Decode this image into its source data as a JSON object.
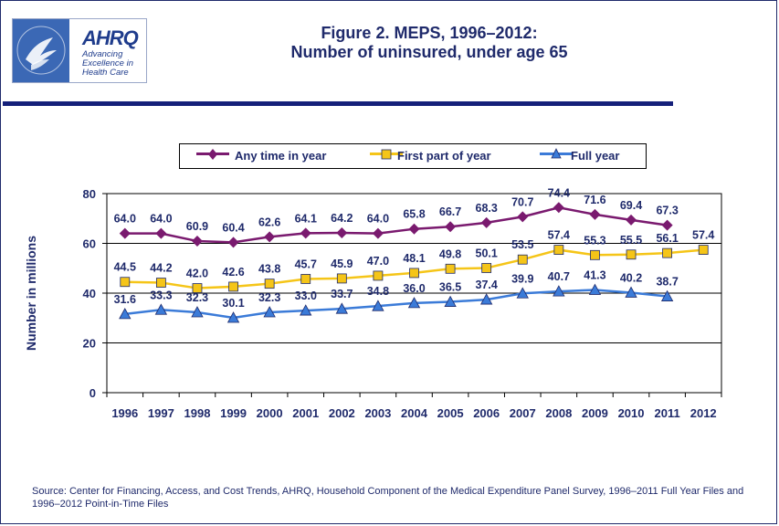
{
  "title_line1": "Figure 2. MEPS, 1996–2012:",
  "title_line2": "Number of uninsured, under age 65",
  "logo": {
    "brand": "AHRQ",
    "tag1": "Advancing",
    "tag2": "Excellence in",
    "tag3": "Health Care",
    "seal_text": "DEPARTMENT OF HEALTH & HUMAN SERVICES USA"
  },
  "source": "Source: Center for Financing, Access, and Cost Trends, AHRQ, Household Component of the Medical Expenditure Panel Survey,  1996–2011 Full Year Files and 1996–2012 Point-in-Time Files",
  "colors": {
    "navy": "#1f2a6b",
    "any_time": "#7a1a6f",
    "first_part": "#f5c518",
    "full_year": "#3b7bd8",
    "rule": "#15207a"
  },
  "chart_data": {
    "type": "line",
    "title": "",
    "xlabel": "",
    "ylabel": "Number in millions",
    "ylim": [
      0,
      80
    ],
    "yticks": [
      "0",
      "20",
      "40",
      "60",
      "80"
    ],
    "grid": "horizontal",
    "legend_position": "top",
    "categories": [
      "1996",
      "1997",
      "1998",
      "1999",
      "2000",
      "2001",
      "2002",
      "2003",
      "2004",
      "2005",
      "2006",
      "2007",
      "2008",
      "2009",
      "2010",
      "2011",
      "2012"
    ],
    "series": [
      {
        "name": "Any time in year",
        "marker": "diamond",
        "values": [
          64.0,
          64.0,
          60.9,
          60.4,
          62.6,
          64.1,
          64.2,
          64.0,
          65.8,
          66.7,
          68.3,
          70.7,
          74.4,
          71.6,
          69.4,
          67.3,
          null
        ],
        "labels": [
          "64.0",
          "64.0",
          "60.9",
          "60.4",
          "62.6",
          "64.1",
          "64.2",
          "64.0",
          "65.8",
          "66.7",
          "68.3",
          "70.7",
          "74.4",
          "71.6",
          "69.4",
          "67.3",
          ""
        ]
      },
      {
        "name": "First part of year",
        "marker": "square",
        "values": [
          44.5,
          44.2,
          42.0,
          42.6,
          43.8,
          45.7,
          45.9,
          47.0,
          48.1,
          49.8,
          50.1,
          53.5,
          57.4,
          55.3,
          55.5,
          56.1,
          57.4
        ],
        "labels": [
          "44.5",
          "44.2",
          "42.0",
          "42.6",
          "43.8",
          "45.7",
          "45.9",
          "47.0",
          "48.1",
          "49.8",
          "50.1",
          "53.5",
          "57.4",
          "55.3",
          "55.5",
          "56.1",
          "57.4"
        ]
      },
      {
        "name": "Full year",
        "marker": "triangle",
        "values": [
          31.6,
          33.3,
          32.3,
          30.1,
          32.3,
          33.0,
          33.7,
          34.8,
          36.0,
          36.5,
          37.4,
          39.9,
          40.7,
          41.3,
          40.2,
          38.7,
          null
        ],
        "labels": [
          "31.6",
          "33.3",
          "32.3",
          "30.1",
          "32.3",
          "33.0",
          "33.7",
          "34.8",
          "36.0",
          "36.5",
          "37.4",
          "39.9",
          "40.7",
          "41.3",
          "40.2",
          "38.7",
          ""
        ]
      }
    ]
  }
}
